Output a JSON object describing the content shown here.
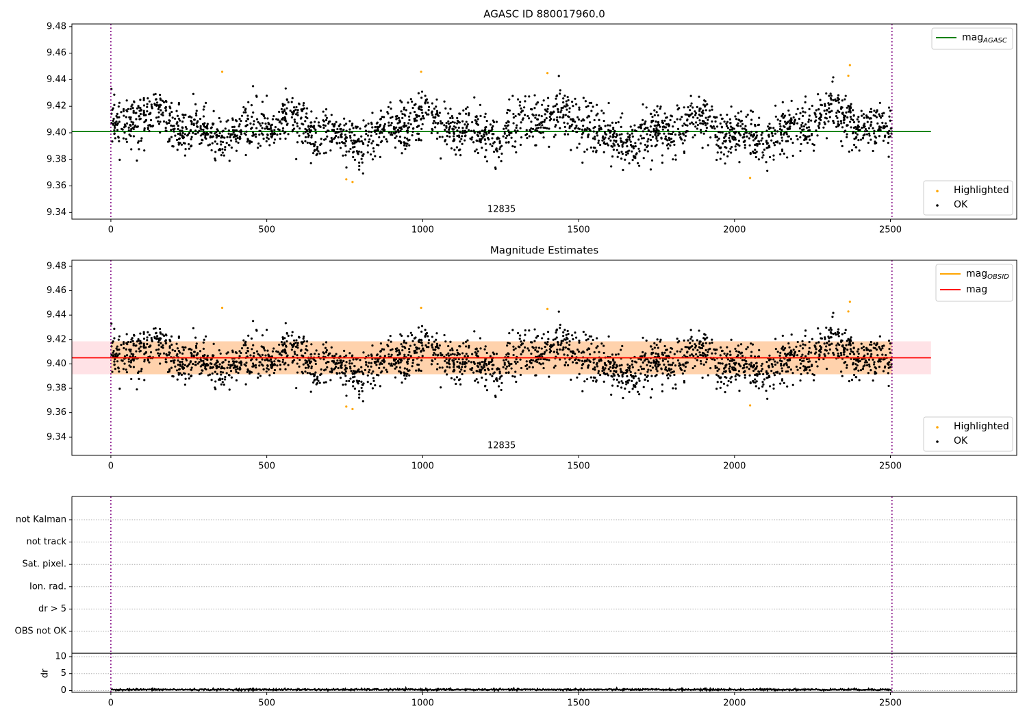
{
  "chart_data": [
    {
      "type": "scatter",
      "title": "AGASC ID 880017960.0",
      "xlim": [
        -125,
        2905
      ],
      "ylim": [
        9.335,
        9.482
      ],
      "x_ticks": [
        0,
        500,
        1000,
        1500,
        2000,
        2500
      ],
      "y_ticks": [
        9.34,
        9.36,
        9.38,
        9.4,
        9.42,
        9.44,
        9.46,
        9.48
      ],
      "observation_boundaries": [
        0,
        2505
      ],
      "observation_labels": [
        {
          "x": 1253,
          "text": "12835"
        }
      ],
      "lines": [
        {
          "name": "mag_AGASC",
          "label_main": "mag",
          "label_sub": "AGASC",
          "y": 9.401,
          "x_range": [
            -125,
            2630
          ],
          "color": "#008000"
        }
      ],
      "series": [
        {
          "name": "Highlighted",
          "color": "#ffa500",
          "x": [
            357,
            755,
            775,
            995,
            1400,
            2050,
            2365,
            2370
          ],
          "y": [
            9.446,
            9.365,
            9.363,
            9.446,
            9.445,
            9.366,
            9.443,
            9.451
          ]
        },
        {
          "name": "OK",
          "color": "#000000",
          "n_points": 2500,
          "x_range": [
            0,
            2505
          ],
          "y_center": 9.403,
          "y_spread": 0.011
        }
      ],
      "legends": [
        {
          "position": "upper-right",
          "entries": [
            "mag_AGASC"
          ]
        },
        {
          "position": "lower-right",
          "entries": [
            "Highlighted",
            "OK"
          ]
        }
      ]
    },
    {
      "type": "scatter",
      "title": "Magnitude Estimates",
      "xlim": [
        -125,
        2905
      ],
      "ylim": [
        9.325,
        9.485
      ],
      "x_ticks": [
        0,
        500,
        1000,
        1500,
        2000,
        2500
      ],
      "y_ticks": [
        9.34,
        9.36,
        9.38,
        9.4,
        9.42,
        9.44,
        9.46,
        9.48
      ],
      "observation_boundaries": [
        0,
        2505
      ],
      "observation_labels": [
        {
          "x": 1253,
          "text": "12835"
        }
      ],
      "lines": [
        {
          "name": "mag_OBSID",
          "label_main": "mag",
          "label_sub": "OBSID",
          "y": 9.405,
          "x_range": [
            0,
            2505
          ],
          "color": "#ffa500"
        },
        {
          "name": "mag",
          "label_main": "mag",
          "label_sub": "",
          "y": 9.405,
          "x_range": [
            -125,
            2630
          ],
          "color": "#ff0000"
        }
      ],
      "bands": [
        {
          "name": "mag_OBSID_band",
          "y_range": [
            9.3915,
            9.4185
          ],
          "x_range": [
            0,
            2505
          ],
          "color": "#ffa500",
          "opacity": 0.25
        },
        {
          "name": "mag_band",
          "y_range": [
            9.3915,
            9.4185
          ],
          "x_range": [
            -125,
            2630
          ],
          "color": "#ffb6c1",
          "opacity": 0.4
        }
      ],
      "series": [
        {
          "name": "Highlighted",
          "color": "#ffa500",
          "x": [
            357,
            755,
            775,
            995,
            1400,
            2050,
            2365,
            2370
          ],
          "y": [
            9.446,
            9.365,
            9.363,
            9.446,
            9.445,
            9.366,
            9.443,
            9.451
          ]
        },
        {
          "name": "OK",
          "color": "#000000",
          "n_points": 2500,
          "x_range": [
            0,
            2505
          ],
          "y_center": 9.403,
          "y_spread": 0.011
        }
      ],
      "legends": [
        {
          "position": "upper-right",
          "entries": [
            "mag_OBSID",
            "mag"
          ]
        },
        {
          "position": "lower-right",
          "entries": [
            "Highlighted",
            "OK"
          ]
        }
      ]
    },
    {
      "type": "scatter",
      "title": "",
      "xlim": [
        -125,
        2905
      ],
      "categories": [
        "OBS not OK",
        "dr > 5",
        "Ion. rad.",
        "Sat. pixel.",
        "not track",
        "not Kalman"
      ],
      "flags": [],
      "observation_boundaries": [
        0,
        2505
      ],
      "grid": true
    },
    {
      "type": "line",
      "title": "",
      "ylabel": "dr",
      "xlim": [
        -125,
        2905
      ],
      "ylim": [
        -0.5,
        11
      ],
      "x_ticks": [
        0,
        500,
        1000,
        1500,
        2000,
        2500
      ],
      "y_ticks": [
        0,
        5,
        10
      ],
      "hlines": [
        0,
        5,
        10
      ],
      "observation_boundaries": [
        0,
        2505
      ],
      "series": [
        {
          "name": "dr",
          "color": "#000000",
          "x_range": [
            0,
            2505
          ],
          "y_typical": 0.3
        }
      ]
    }
  ]
}
